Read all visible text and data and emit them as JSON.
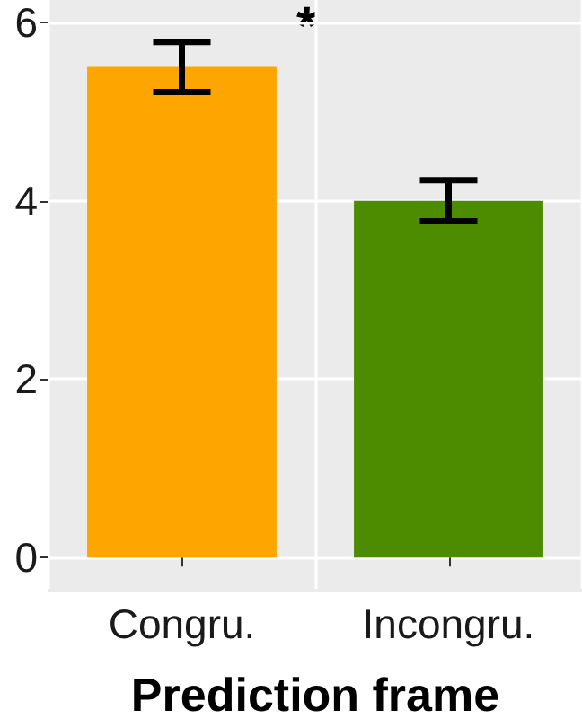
{
  "chart_data": {
    "type": "bar",
    "xlabel": "Prediction frame",
    "categories": [
      "Congru.",
      "Incongru."
    ],
    "values": [
      5.5,
      4.0
    ],
    "colors": [
      "#ffa500",
      "#4d8b00"
    ],
    "errors": [
      0.28,
      0.23
    ],
    "ylim": [
      -0.35,
      6.25
    ],
    "yticks": [
      0,
      2,
      4,
      6
    ],
    "grid": true,
    "annotations": [
      "*"
    ]
  }
}
